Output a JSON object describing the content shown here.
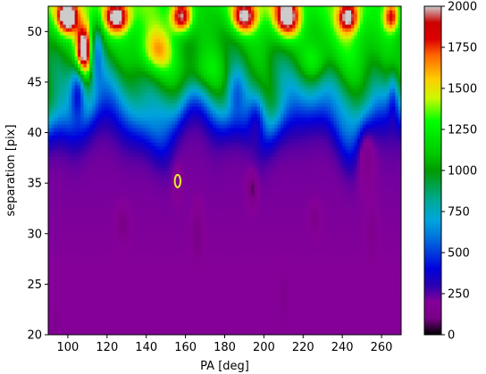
{
  "chart_data": {
    "type": "heatmap",
    "xlabel": "PA [deg]",
    "ylabel": "separation [pix]",
    "xlim": [
      90,
      270
    ],
    "ylim": [
      20,
      52.5
    ],
    "x_ticks": [
      100,
      120,
      140,
      160,
      180,
      200,
      220,
      240,
      260
    ],
    "y_ticks": [
      20,
      25,
      30,
      35,
      40,
      45,
      50
    ],
    "colorbar": {
      "colormap": "nipy_spectral",
      "range": [
        0,
        2000
      ],
      "ticks": [
        0,
        250,
        500,
        750,
        1000,
        1250,
        1500,
        1750,
        2000
      ]
    },
    "marker": {
      "shape": "ellipse",
      "color": "#e8e830",
      "pa_deg": 156,
      "separation_pix": 35.2
    },
    "colormap_stops": [
      [
        "#000000",
        0.0
      ],
      [
        "#7a0088",
        0.05
      ],
      [
        "#850099",
        0.1
      ],
      [
        "#2a00b0",
        0.15
      ],
      [
        "#0000dd",
        0.2
      ],
      [
        "#0077dd",
        0.3
      ],
      [
        "#00a5dd",
        0.35
      ],
      [
        "#00aaa0",
        0.4
      ],
      [
        "#009b00",
        0.5
      ],
      [
        "#00c800",
        0.55
      ],
      [
        "#00ff00",
        0.65
      ],
      [
        "#ccf800",
        0.72
      ],
      [
        "#ffcc00",
        0.78
      ],
      [
        "#ff6600",
        0.85
      ],
      [
        "#dd0000",
        0.9
      ],
      [
        "#cc0000",
        0.95
      ],
      [
        "#cccccc",
        1.0
      ]
    ]
  }
}
